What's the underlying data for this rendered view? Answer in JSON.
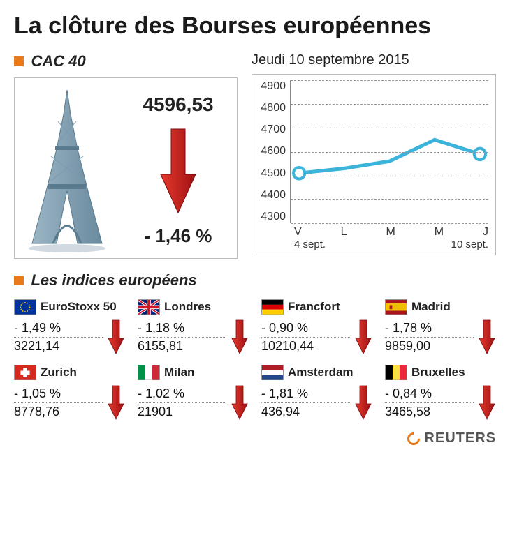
{
  "title": "La clôture des Bourses européennes",
  "cac40": {
    "section_label": "CAC 40",
    "value": "4596,53",
    "change_pct": "- 1,46  %",
    "direction": "down",
    "arrow_color": "#c8171c",
    "marker_color": "#e87a1a"
  },
  "chart": {
    "date_label": "Jeudi 10 septembre 2015",
    "type": "line",
    "ylim": [
      4300,
      4900
    ],
    "ytick_step": 100,
    "y_ticks": [
      "4900",
      "4800",
      "4700",
      "4600",
      "4500",
      "4400",
      "4300"
    ],
    "x_labels": [
      "V",
      "L",
      "M",
      "M",
      "J"
    ],
    "x_sub_left": "4 sept.",
    "x_sub_right": "10 sept.",
    "values": [
      4510,
      4530,
      4560,
      4650,
      4590
    ],
    "line_color": "#3bb3da",
    "line_width": 5,
    "marker_color": "#ffffff",
    "marker_stroke": "#3bb3da",
    "marker_radius": 8,
    "grid_color": "#999999",
    "background_color": "#ffffff"
  },
  "indices": {
    "section_label": "Les indices européens",
    "marker_color": "#e87a1a",
    "arrow_color": "#c8171c",
    "items": [
      {
        "name": "EuroStoxx 50",
        "pct": "- 1,49  %",
        "value": "3221,14",
        "direction": "down",
        "flag": "eu"
      },
      {
        "name": "Londres",
        "pct": "- 1,18  %",
        "value": "6155,81",
        "direction": "down",
        "flag": "uk"
      },
      {
        "name": "Francfort",
        "pct": "- 0,90 %",
        "value": "10210,44",
        "direction": "down",
        "flag": "de"
      },
      {
        "name": "Madrid",
        "pct": "- 1,78  %",
        "value": "9859,00",
        "direction": "down",
        "flag": "es"
      },
      {
        "name": "Zurich",
        "pct": "- 1,05  %",
        "value": "8778,76",
        "direction": "down",
        "flag": "ch"
      },
      {
        "name": "Milan",
        "pct": "- 1,02  %",
        "value": "21901",
        "direction": "down",
        "flag": "it"
      },
      {
        "name": "Amsterdam",
        "pct": "- 1,81  %",
        "value": "436,94",
        "direction": "down",
        "flag": "nl"
      },
      {
        "name": "Bruxelles",
        "pct": "- 0,84  %",
        "value": "3465,58",
        "direction": "down",
        "flag": "be"
      }
    ]
  },
  "footer": {
    "brand": "REUTERS"
  },
  "flag_colors": {
    "eu": {
      "bg": "#003399"
    },
    "uk": {},
    "de": {
      "top": "#000000",
      "mid": "#dd0000",
      "bot": "#ffce00"
    },
    "es": {
      "top": "#aa151b",
      "mid": "#f1bf00",
      "bot": "#aa151b"
    },
    "ch": {
      "bg": "#d52b1e",
      "cross": "#ffffff"
    },
    "it": {
      "l": "#009246",
      "m": "#ffffff",
      "r": "#ce2b37"
    },
    "nl": {
      "top": "#ae1c28",
      "mid": "#ffffff",
      "bot": "#21468b"
    },
    "be": {
      "l": "#000000",
      "m": "#fae042",
      "r": "#ed2939"
    }
  }
}
